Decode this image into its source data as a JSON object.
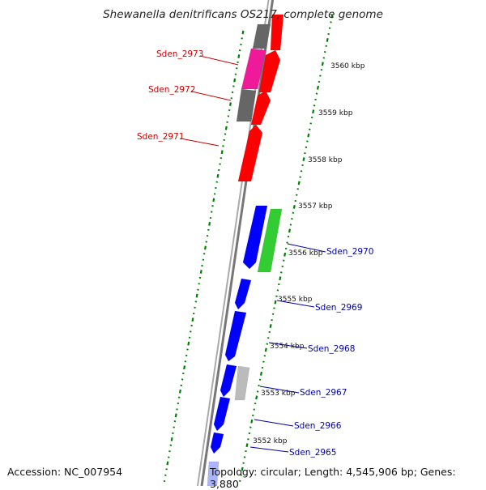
{
  "title": "Shewanella denitrificans OS217, complete genome",
  "footer": {
    "accession": "Accession: NC_007954",
    "topology": "Topology: circular; Length: 4,545,906 bp; Genes: 3,880"
  },
  "colors": {
    "backbone": "#808080",
    "forward_genes": "#ff0000",
    "reverse_genes": "#0000ff",
    "dotted_ring": "#008000",
    "label_forward": "#cc0000",
    "label_reverse": "#0000aa"
  },
  "scale_ticks": [
    "3560 kbp",
    "3559 kbp",
    "3558 kbp",
    "3557 kbp",
    "3556 kbp",
    "3555 kbp",
    "3554 kbp",
    "3553 kbp",
    "3552 kbp"
  ],
  "gene_labels": [
    {
      "text": "Sden_2973",
      "strand": "forward"
    },
    {
      "text": "Sden_2972",
      "strand": "forward"
    },
    {
      "text": "Sden_2971",
      "strand": "forward"
    },
    {
      "text": "Sden_2970",
      "strand": "reverse"
    },
    {
      "text": "Sden_2969",
      "strand": "reverse"
    },
    {
      "text": "Sden_2968",
      "strand": "reverse"
    },
    {
      "text": "Sden_2967",
      "strand": "reverse"
    },
    {
      "text": "Sden_2966",
      "strand": "reverse"
    },
    {
      "text": "Sden_2965",
      "strand": "reverse"
    }
  ]
}
